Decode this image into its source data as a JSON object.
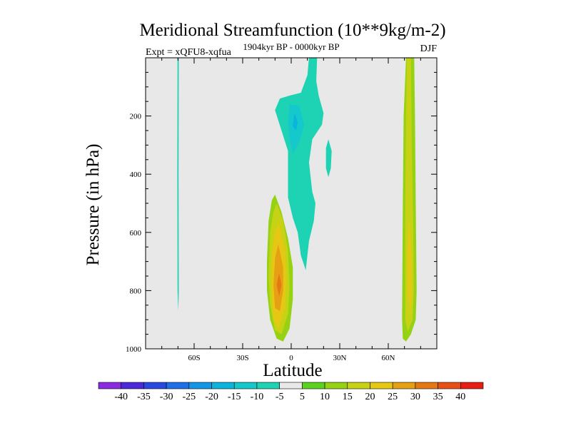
{
  "chart_data": {
    "type": "contour",
    "title": "Meridional Streamfunction (10**9kg/m-2)",
    "subtitle_left": "Expt = xQFU8-xqfua",
    "subtitle_center": "1904kyr BP - 0000kyr BP",
    "subtitle_right": "DJF",
    "xlabel": "Latitude",
    "ylabel": "Pressure (in hPa)",
    "xlim": [
      -90,
      90
    ],
    "ylim": [
      1000,
      0
    ],
    "x_ticks": [
      {
        "value": -60,
        "label": "60S"
      },
      {
        "value": -30,
        "label": "30S"
      },
      {
        "value": 0,
        "label": "0"
      },
      {
        "value": 30,
        "label": "30N"
      },
      {
        "value": 60,
        "label": "60N"
      }
    ],
    "y_ticks": [
      {
        "value": 200,
        "label": "200"
      },
      {
        "value": 400,
        "label": "400"
      },
      {
        "value": 600,
        "label": "600"
      },
      {
        "value": 800,
        "label": "800"
      },
      {
        "value": 1000,
        "label": "1000"
      }
    ],
    "background_color": "#e8e8e8",
    "colorbar": {
      "labels": [
        "-40",
        "-35",
        "-30",
        "-25",
        "-20",
        "-15",
        "-10",
        "-5",
        "5",
        "10",
        "15",
        "20",
        "25",
        "30",
        "35",
        "40"
      ],
      "colors": [
        "#8a2be2",
        "#4b28d8",
        "#2848e0",
        "#1e6ee8",
        "#1496e6",
        "#0ab4dc",
        "#14c8cc",
        "#1ed2b4",
        "#e8e8e8",
        "#5ad21e",
        "#96d214",
        "#c8d214",
        "#e6c814",
        "#e6a014",
        "#e67814",
        "#e65014",
        "#e61e14"
      ]
    },
    "regions": [
      {
        "name": "sh-polar-filament",
        "level": -5,
        "points": [
          [
            -70.3,
            0
          ],
          [
            -69.5,
            0
          ],
          [
            -69.6,
            400
          ],
          [
            -69.5,
            800
          ],
          [
            -69.8,
            870
          ],
          [
            -70.3,
            800
          ],
          [
            -70.4,
            400
          ]
        ]
      },
      {
        "name": "sh-tropical-cell",
        "level": 10,
        "points": [
          [
            -10,
            470
          ],
          [
            -6,
            530
          ],
          [
            -2,
            620
          ],
          [
            1,
            720
          ],
          [
            1,
            830
          ],
          [
            -1,
            930
          ],
          [
            -5,
            975
          ],
          [
            -9,
            965
          ],
          [
            -13,
            900
          ],
          [
            -15,
            800
          ],
          [
            -15,
            700
          ],
          [
            -14,
            560
          ],
          [
            -12,
            490
          ]
        ]
      },
      {
        "name": "sh-tropical-cell",
        "level": 15,
        "points": [
          [
            -9,
            500
          ],
          [
            -5,
            560
          ],
          [
            -2,
            660
          ],
          [
            -1,
            780
          ],
          [
            -2,
            880
          ],
          [
            -6,
            950
          ],
          [
            -10,
            935
          ],
          [
            -13,
            850
          ],
          [
            -14,
            750
          ],
          [
            -13,
            600
          ],
          [
            -11,
            530
          ]
        ]
      },
      {
        "name": "sh-tropical-cell",
        "level": 20,
        "points": [
          [
            -8,
            570
          ],
          [
            -4,
            650
          ],
          [
            -3,
            760
          ],
          [
            -4,
            860
          ],
          [
            -8,
            930
          ],
          [
            -11,
            900
          ],
          [
            -12,
            800
          ],
          [
            -12,
            680
          ],
          [
            -10,
            600
          ]
        ]
      },
      {
        "name": "sh-tropical-cell",
        "level": 25,
        "points": [
          [
            -8,
            640
          ],
          [
            -5,
            720
          ],
          [
            -5,
            800
          ],
          [
            -7,
            870
          ],
          [
            -10,
            860
          ],
          [
            -11,
            780
          ],
          [
            -10,
            690
          ]
        ]
      },
      {
        "name": "sh-tropical-cell",
        "level": 30,
        "points": [
          [
            -7.5,
            740
          ],
          [
            -6,
            780
          ],
          [
            -7.5,
            820
          ],
          [
            -9,
            780
          ]
        ]
      },
      {
        "name": "equatorial-cell",
        "level": -5,
        "points": [
          [
            11,
            0
          ],
          [
            16,
            0
          ],
          [
            15.5,
            80
          ],
          [
            17,
            130
          ],
          [
            20,
            190
          ],
          [
            19,
            230
          ],
          [
            13,
            280
          ],
          [
            11,
            360
          ],
          [
            13,
            460
          ],
          [
            15,
            500
          ],
          [
            14,
            560
          ],
          [
            11,
            630
          ],
          [
            9,
            730
          ],
          [
            6,
            680
          ],
          [
            4,
            600
          ],
          [
            1,
            550
          ],
          [
            -2,
            480
          ],
          [
            -2,
            320
          ],
          [
            -6,
            250
          ],
          [
            -10,
            180
          ],
          [
            -7,
            140
          ],
          [
            -1,
            130
          ],
          [
            6,
            120
          ],
          [
            10,
            60
          ]
        ]
      },
      {
        "name": "equatorial-cell",
        "level": -10,
        "points": [
          [
            -1,
            160
          ],
          [
            5,
            165
          ],
          [
            8,
            230
          ],
          [
            5,
            290
          ],
          [
            1,
            330
          ],
          [
            -1,
            280
          ],
          [
            -2,
            220
          ]
        ]
      },
      {
        "name": "equatorial-cell",
        "level": -15,
        "points": [
          [
            2,
            190
          ],
          [
            4,
            220
          ],
          [
            3,
            250
          ],
          [
            1,
            235
          ]
        ]
      },
      {
        "name": "nh-subtropical-patch",
        "level": -5,
        "points": [
          [
            23,
            280
          ],
          [
            25,
            320
          ],
          [
            24.5,
            380
          ],
          [
            23,
            410
          ],
          [
            21.5,
            380
          ],
          [
            21.5,
            310
          ]
        ]
      },
      {
        "name": "nh-polar-cell",
        "level": 10,
        "points": [
          [
            71,
            0
          ],
          [
            76,
            0
          ],
          [
            76.5,
            200
          ],
          [
            77,
            500
          ],
          [
            77.5,
            800
          ],
          [
            77,
            900
          ],
          [
            74,
            950
          ],
          [
            71,
            975
          ],
          [
            69,
            965
          ],
          [
            68.5,
            900
          ],
          [
            69,
            500
          ],
          [
            69.5,
            200
          ]
        ]
      },
      {
        "name": "nh-polar-cell",
        "level": 15,
        "points": [
          [
            71.5,
            0
          ],
          [
            74,
            0
          ],
          [
            74.5,
            300
          ],
          [
            75.5,
            600
          ],
          [
            75.8,
            800
          ],
          [
            75,
            900
          ],
          [
            72,
            940
          ],
          [
            70.5,
            900
          ],
          [
            70.5,
            500
          ],
          [
            71,
            200
          ]
        ]
      },
      {
        "name": "nh-polar-cell",
        "level": 20,
        "points": [
          [
            73,
            550
          ],
          [
            74.5,
            700
          ],
          [
            74.5,
            830
          ],
          [
            73.5,
            880
          ],
          [
            72,
            800
          ],
          [
            72,
            650
          ]
        ]
      }
    ]
  }
}
